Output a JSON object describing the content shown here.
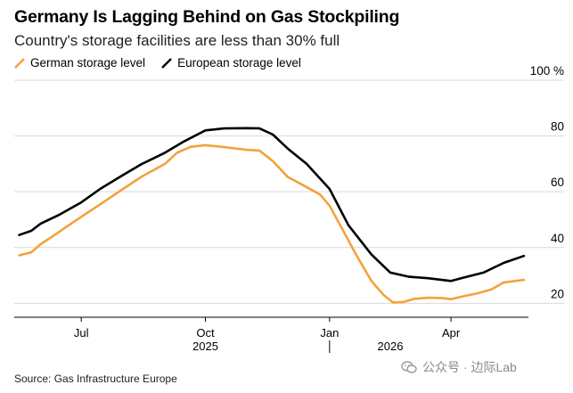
{
  "title": "Germany Is Lagging Behind on Gas Stockpiling",
  "subtitle": "Country's storage facilities are less than 30% full",
  "source": "Source: Gas Infrastructure Europe",
  "watermark": "公众号 · 边际Lab",
  "colors": {
    "german": "#f3a23b",
    "european": "#000000",
    "grid": "#d9d9d9",
    "axis": "#000000"
  },
  "chart_data": {
    "type": "line",
    "title": "Germany Is Lagging Behind on Gas Stockpiling",
    "subtitle": "Country's storage facilities are less than 30% full",
    "ylim": [
      15,
      100
    ],
    "y_ticks": [
      20,
      40,
      60,
      80,
      100
    ],
    "y_tick_labels": [
      "20",
      "40",
      "60",
      "80",
      "100 %"
    ],
    "x_range": [
      "2025-05-15",
      "2026-05-31"
    ],
    "x_ticks": [
      {
        "date": "2025-07-01",
        "label": "Jul"
      },
      {
        "date": "2025-10-01",
        "label": "Oct"
      },
      {
        "date": "2026-01-01",
        "label": "Jan"
      },
      {
        "date": "2026-04-01",
        "label": "Apr"
      }
    ],
    "year_labels": [
      {
        "date": "2025-10-01",
        "label": "2025"
      },
      {
        "date": "2026-02-15",
        "label": "2026"
      }
    ],
    "year_divider": "2026-01-01",
    "grid": true,
    "legend": "top-left",
    "series": [
      {
        "name": "German storage level",
        "color": "#f3a23b",
        "points": [
          [
            "2025-05-16",
            37.2
          ],
          [
            "2025-05-25",
            38.3
          ],
          [
            "2025-06-01",
            41.2
          ],
          [
            "2025-06-10",
            44.1
          ],
          [
            "2025-06-20",
            47.4
          ],
          [
            "2025-07-01",
            51.0
          ],
          [
            "2025-07-15",
            55.5
          ],
          [
            "2025-08-01",
            61.0
          ],
          [
            "2025-08-15",
            65.5
          ],
          [
            "2025-09-01",
            70.0
          ],
          [
            "2025-09-10",
            74.0
          ],
          [
            "2025-09-20",
            76.1
          ],
          [
            "2025-10-01",
            76.7
          ],
          [
            "2025-10-15",
            76.0
          ],
          [
            "2025-11-01",
            75.0
          ],
          [
            "2025-11-10",
            74.8
          ],
          [
            "2025-11-20",
            71.0
          ],
          [
            "2025-12-01",
            65.3
          ],
          [
            "2025-12-10",
            63.0
          ],
          [
            "2025-12-25",
            59.0
          ],
          [
            "2026-01-01",
            55.0
          ],
          [
            "2026-01-10",
            47.0
          ],
          [
            "2026-01-20",
            38.0
          ],
          [
            "2026-02-01",
            28.0
          ],
          [
            "2026-02-10",
            23.0
          ],
          [
            "2026-02-17",
            20.3
          ],
          [
            "2026-02-25",
            20.5
          ],
          [
            "2026-03-05",
            21.6
          ],
          [
            "2026-03-15",
            22.0
          ],
          [
            "2026-03-25",
            21.9
          ],
          [
            "2026-04-01",
            21.5
          ],
          [
            "2026-04-10",
            22.5
          ],
          [
            "2026-04-20",
            23.5
          ],
          [
            "2026-05-01",
            25.0
          ],
          [
            "2026-05-10",
            27.5
          ],
          [
            "2026-05-25",
            28.4
          ]
        ]
      },
      {
        "name": "European storage level",
        "color": "#000000",
        "points": [
          [
            "2025-05-16",
            44.5
          ],
          [
            "2025-05-25",
            46.0
          ],
          [
            "2025-06-01",
            48.6
          ],
          [
            "2025-06-15",
            51.8
          ],
          [
            "2025-07-01",
            56.2
          ],
          [
            "2025-07-15",
            61.0
          ],
          [
            "2025-08-01",
            66.0
          ],
          [
            "2025-08-15",
            70.0
          ],
          [
            "2025-09-01",
            74.0
          ],
          [
            "2025-09-15",
            78.0
          ],
          [
            "2025-09-25",
            80.5
          ],
          [
            "2025-10-01",
            82.0
          ],
          [
            "2025-10-15",
            82.7
          ],
          [
            "2025-11-01",
            82.8
          ],
          [
            "2025-11-10",
            82.7
          ],
          [
            "2025-11-20",
            80.5
          ],
          [
            "2025-12-01",
            75.5
          ],
          [
            "2025-12-15",
            70.0
          ],
          [
            "2026-01-01",
            61.0
          ],
          [
            "2026-01-15",
            48.0
          ],
          [
            "2026-02-01",
            37.5
          ],
          [
            "2026-02-15",
            31.0
          ],
          [
            "2026-03-01",
            29.5
          ],
          [
            "2026-03-15",
            29.0
          ],
          [
            "2026-04-01",
            28.0
          ],
          [
            "2026-04-10",
            29.2
          ],
          [
            "2026-04-25",
            31.0
          ],
          [
            "2026-05-10",
            34.5
          ],
          [
            "2026-05-25",
            37.0
          ]
        ]
      }
    ]
  }
}
